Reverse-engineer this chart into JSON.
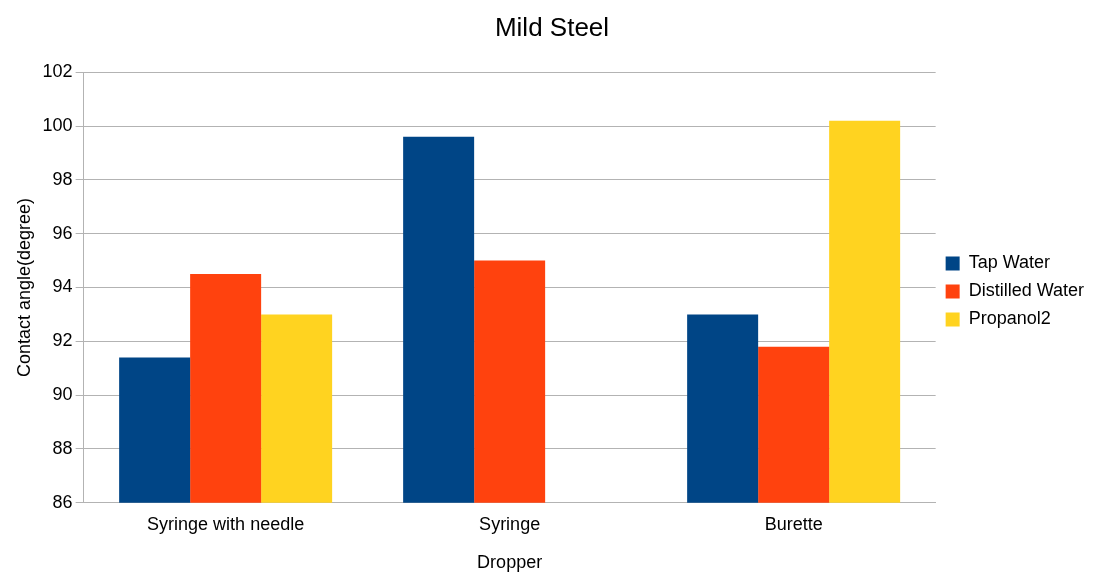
{
  "chart_data": {
    "type": "bar",
    "title": "Mild Steel",
    "xlabel": "Dropper",
    "ylabel": "Contact angle(degree)",
    "categories": [
      "Syringe with needle",
      "Syringe",
      "Burette"
    ],
    "series": [
      {
        "name": "Tap Water",
        "color": "#004586",
        "values": [
          91.4,
          99.6,
          93.0
        ]
      },
      {
        "name": "Distilled Water",
        "color": "#ff420e",
        "values": [
          94.5,
          95.0,
          91.8
        ]
      },
      {
        "name": "Propanol2",
        "color": "#ffd320",
        "values": [
          93.0,
          null,
          100.2
        ]
      }
    ],
    "ylim": [
      86,
      102
    ],
    "yticks": [
      86,
      88,
      90,
      92,
      94,
      96,
      98,
      100,
      102
    ],
    "grid": "y",
    "legend": "right"
  }
}
